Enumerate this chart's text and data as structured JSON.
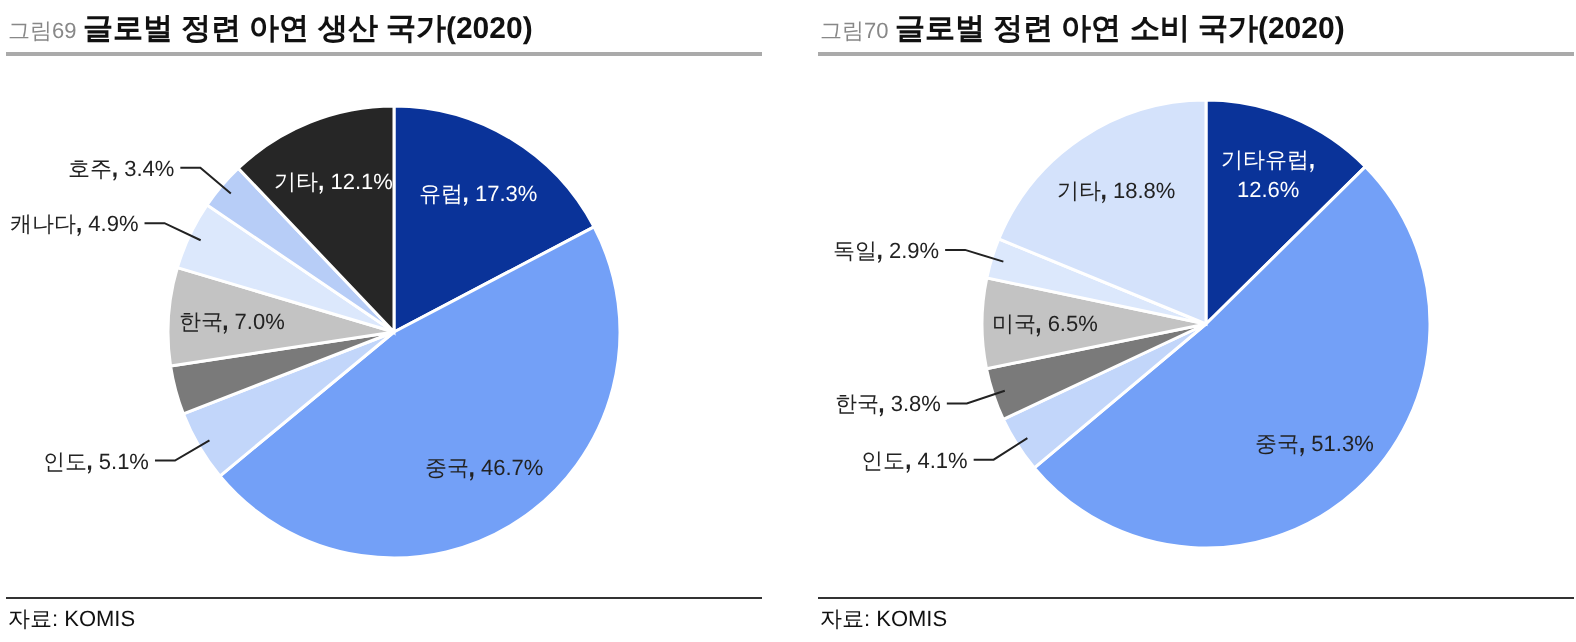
{
  "chart_data": [
    {
      "type": "pie",
      "title": "그림69 글로벌 정련 아연 생산 국가(2020)",
      "categories": [
        "유럽",
        "중국",
        "인도",
        null,
        "한국",
        "캐나다",
        "호주",
        "기타"
      ],
      "values": [
        17.3,
        46.7,
        5.1,
        3.5,
        7.0,
        4.9,
        3.4,
        12.1
      ],
      "colors": [
        "#0a3399",
        "#73a0f7",
        "#c2d6fa",
        "#7a7a7a",
        "#c3c3c3",
        "#dce8fc",
        "#b7cdf7",
        "#262626"
      ],
      "value_labels": [
        "17.3%",
        "46.7%",
        "5.1%",
        null,
        "7.0%",
        "4.9%",
        "3.4%",
        "12.1%"
      ],
      "annotations": [
        "자료: KOMIS"
      ]
    },
    {
      "type": "pie",
      "title": "그림70 글로벌 정련 아연 소비 국가(2020)",
      "categories": [
        "기타유럽",
        "중국",
        "인도",
        "한국",
        "미국",
        "독일",
        "기타"
      ],
      "values": [
        12.6,
        51.3,
        4.1,
        3.8,
        6.5,
        2.9,
        18.8
      ],
      "colors": [
        "#0a3399",
        "#73a0f7",
        "#c2d6fa",
        "#7a7a7a",
        "#c3c3c3",
        "#dce8fc",
        "#d4e2fb"
      ],
      "value_labels": [
        "12.6%",
        "51.3%",
        "4.1%",
        "3.8%",
        "6.5%",
        "2.9%",
        "18.8%"
      ],
      "annotations": [
        "자료: KOMIS"
      ]
    }
  ]
}
